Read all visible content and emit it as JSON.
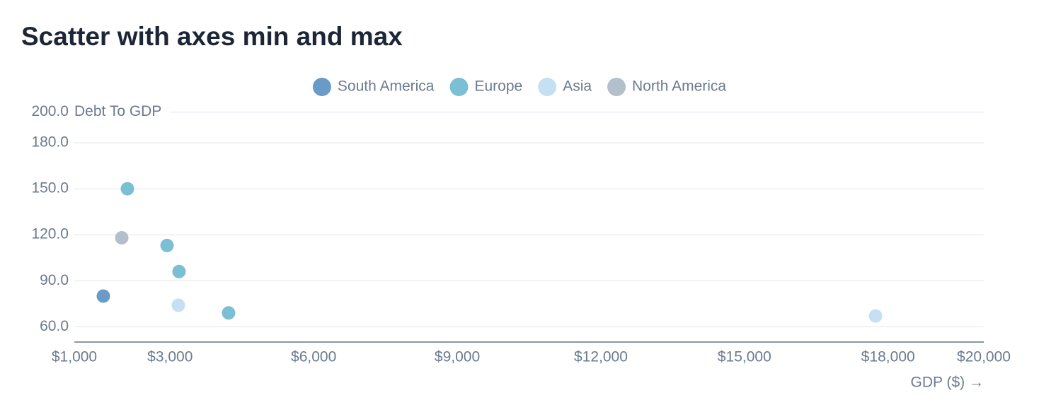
{
  "chart_data": {
    "type": "scatter",
    "title": "Scatter with axes min and max",
    "x_label": "GDP ($) →",
    "y_label": "Debt To GDP",
    "xlim": [
      1000,
      20000
    ],
    "xticks": [
      {
        "value": 1000,
        "label": "$1,000"
      },
      {
        "value": 3000,
        "label": "$3,000"
      },
      {
        "value": 6000,
        "label": "$6,000"
      },
      {
        "value": 9000,
        "label": "$9,000"
      },
      {
        "value": 12000,
        "label": "$12,000"
      },
      {
        "value": 15000,
        "label": "$15,000"
      },
      {
        "value": 18000,
        "label": "$18,000"
      },
      {
        "value": 20000,
        "label": "$20,000"
      }
    ],
    "ylim": [
      50,
      200
    ],
    "yticks": [
      {
        "value": 60,
        "label": "60.0"
      },
      {
        "value": 90,
        "label": "90.0"
      },
      {
        "value": 120,
        "label": "120.0"
      },
      {
        "value": 150,
        "label": "150.0"
      },
      {
        "value": 180,
        "label": "180.0"
      },
      {
        "value": 200,
        "label": "200.0"
      }
    ],
    "grid": true,
    "legend": "top",
    "series": [
      {
        "name": "South America",
        "color": "#6a9bc6",
        "x": [
          1606
        ],
        "values": [
          80
        ]
      },
      {
        "name": "Europe",
        "color": "#7bbfd5",
        "x": [
          2109,
          2937,
          3188,
          4223
        ],
        "values": [
          150,
          113,
          96,
          69
        ]
      },
      {
        "name": "Asia",
        "color": "#c5e0f3",
        "x": [
          3173,
          17738
        ],
        "values": [
          74,
          67
        ]
      },
      {
        "name": "North America",
        "color": "#b3c0cb",
        "x": [
          1991
        ],
        "values": [
          118
        ]
      }
    ]
  }
}
